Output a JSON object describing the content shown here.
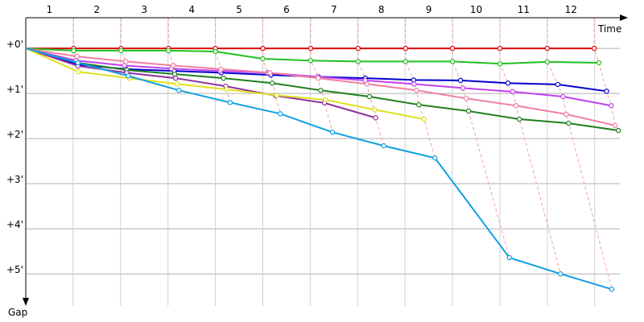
{
  "chart_data": {
    "type": "line",
    "xlabel": "Time",
    "ylabel": "Gap",
    "xlim": [
      0,
      12.7
    ],
    "ylim": [
      -0.68,
      5.71
    ],
    "xticks": [
      {
        "value": 0.5,
        "label": "1"
      },
      {
        "value": 1.5,
        "label": "2"
      },
      {
        "value": 2.5,
        "label": "3"
      },
      {
        "value": 3.5,
        "label": "4"
      },
      {
        "value": 4.5,
        "label": "5"
      },
      {
        "value": 5.5,
        "label": "6"
      },
      {
        "value": 6.5,
        "label": "7"
      },
      {
        "value": 7.5,
        "label": "8"
      },
      {
        "value": 8.5,
        "label": "9"
      },
      {
        "value": 9.5,
        "label": "10"
      },
      {
        "value": 10.5,
        "label": "11"
      },
      {
        "value": 11.5,
        "label": "12"
      }
    ],
    "yticks": [
      {
        "value": 0,
        "label": "+0'"
      },
      {
        "value": 1,
        "label": "+1'"
      },
      {
        "value": 2,
        "label": "+2'"
      },
      {
        "value": 3,
        "label": "+3'"
      },
      {
        "value": 4,
        "label": "+4'"
      },
      {
        "value": 5,
        "label": "+5'"
      }
    ],
    "grid": true,
    "series": [
      {
        "color": "#e00000",
        "x": [
          0,
          1.01,
          2.01,
          3.01,
          4.0,
          5.0,
          6.01,
          7.01,
          8.01,
          9.0,
          10.0,
          11.0,
          11.99
        ],
        "values": [
          0,
          0,
          0,
          0,
          0,
          0,
          0,
          0,
          0,
          0,
          0,
          0,
          0
        ]
      },
      {
        "color": "#20c020",
        "x": [
          0,
          1.01,
          2.01,
          3.01,
          4.0,
          5.0,
          6.01,
          7.01,
          8.01,
          9.0,
          10.0,
          11.0,
          12.09
        ],
        "values": [
          0,
          0.05,
          0.05,
          0.05,
          0.07,
          0.23,
          0.27,
          0.29,
          0.29,
          0.29,
          0.34,
          0.3,
          0.32
        ]
      },
      {
        "color": "#0000d0",
        "x": [
          0,
          1.1,
          2.11,
          3.13,
          4.12,
          5.17,
          6.17,
          7.16,
          8.18,
          9.17,
          10.17,
          11.22,
          12.25
        ],
        "values": [
          0,
          0.36,
          0.46,
          0.5,
          0.54,
          0.59,
          0.63,
          0.66,
          0.7,
          0.71,
          0.77,
          0.8,
          0.95
        ]
      },
      {
        "color": "#c040f0",
        "x": [
          0,
          1.06,
          2.08,
          3.07,
          4.1,
          5.1,
          6.15,
          7.16,
          8.19,
          9.22,
          10.27,
          11.33,
          12.35
        ],
        "values": [
          0,
          0.27,
          0.38,
          0.45,
          0.5,
          0.54,
          0.63,
          0.71,
          0.79,
          0.88,
          0.96,
          1.07,
          1.27
        ]
      },
      {
        "color": "#f080a0",
        "x": [
          0,
          1.08,
          2.11,
          3.11,
          4.12,
          5.15,
          6.17,
          7.2,
          8.24,
          9.29,
          10.34,
          11.4,
          12.43
        ],
        "values": [
          0,
          0.18,
          0.29,
          0.38,
          0.46,
          0.54,
          0.66,
          0.79,
          0.93,
          1.11,
          1.27,
          1.46,
          1.71
        ]
      },
      {
        "color": "#208020",
        "x": [
          0,
          1.1,
          2.13,
          3.14,
          4.17,
          5.2,
          6.22,
          7.25,
          8.29,
          9.34,
          10.41,
          11.45,
          12.5
        ],
        "values": [
          0,
          0.32,
          0.48,
          0.57,
          0.66,
          0.77,
          0.93,
          1.07,
          1.25,
          1.39,
          1.57,
          1.66,
          1.82
        ]
      },
      {
        "color": "#9030a0",
        "x": [
          0,
          1.1,
          2.13,
          3.16,
          4.22,
          5.27,
          6.3,
          7.38
        ],
        "values": [
          0,
          0.39,
          0.54,
          0.66,
          0.84,
          1.05,
          1.21,
          1.54
        ]
      },
      {
        "color": "#e0e020",
        "x": [
          0,
          1.11,
          2.18,
          3.19,
          4.24,
          5.29,
          6.32,
          7.36,
          8.4
        ],
        "values": [
          0,
          0.52,
          0.66,
          0.79,
          0.91,
          1.04,
          1.14,
          1.36,
          1.57
        ]
      },
      {
        "color": "#10a0e0",
        "x": [
          0,
          1.1,
          2.16,
          3.23,
          4.31,
          5.37,
          6.47,
          7.55,
          8.63,
          10.2,
          11.28,
          12.36
        ],
        "values": [
          0,
          0.32,
          0.61,
          0.93,
          1.2,
          1.45,
          1.86,
          2.16,
          2.43,
          4.64,
          5.0,
          5.34
        ]
      }
    ]
  }
}
